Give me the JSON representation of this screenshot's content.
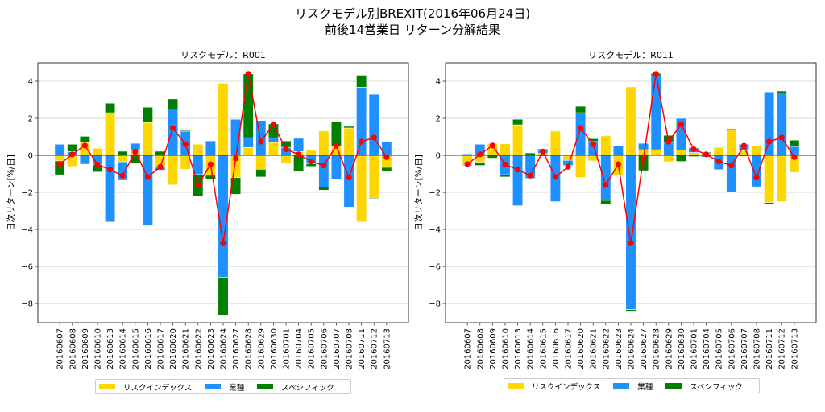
{
  "title": {
    "line1": "リスクモデル別BREXIT(2016年06月24日)",
    "line2": "前後14営業日 リターン分解結果"
  },
  "colors": {
    "risk_index": "#FFD700",
    "sector": "#1E90FF",
    "specific": "#008000",
    "total": "#FF0000"
  },
  "chart_data": [
    {
      "type": "bar",
      "stacked": true,
      "title": "リスクモデル：R001",
      "xlabel": "",
      "ylabel": "日次リターン[%/日]",
      "ylim": [
        -9.04,
        5.0
      ],
      "yticks": [
        4,
        2,
        0,
        -2,
        -4,
        -6,
        -8
      ],
      "grid": "y",
      "legend_position": "bottom-center",
      "categories": [
        "20160607",
        "20160608",
        "20160609",
        "20160610",
        "20160613",
        "20160614",
        "20160615",
        "20160616",
        "20160617",
        "20160620",
        "20160621",
        "20160622",
        "20160623",
        "20160624",
        "20160627",
        "20160628",
        "20160629",
        "20160630",
        "20160701",
        "20160704",
        "20160705",
        "20160706",
        "20160707",
        "20160708",
        "20160711",
        "20160712",
        "20160713"
      ],
      "series": [
        {
          "name": "リスクインデックス",
          "color_key": "risk_index",
          "values": [
            -0.3,
            -0.6,
            0.7,
            0.38,
            2.3,
            -0.35,
            0.25,
            1.78,
            -0.65,
            -1.6,
            -0.75,
            0.6,
            -1.08,
            3.9,
            -1.2,
            0.42,
            -0.75,
            0.7,
            -0.45,
            0.2,
            0.27,
            1.32,
            0.48,
            1.48,
            -3.6,
            -2.28,
            -0.65
          ]
        },
        {
          "name": "業種",
          "color_key": "sector",
          "values": [
            0.6,
            0.2,
            -0.48,
            -0.5,
            -3.6,
            -1.0,
            0.4,
            -3.8,
            -0.15,
            2.5,
            1.3,
            -1.04,
            0.78,
            -6.58,
            1.95,
            0.53,
            1.88,
            0.25,
            0.43,
            0.72,
            -0.45,
            -1.72,
            -1.3,
            -2.8,
            3.68,
            3.3,
            0.75
          ]
        },
        {
          "name": "スペシフィック",
          "color_key": "specific",
          "values": [
            -0.75,
            0.4,
            0.33,
            -0.4,
            0.52,
            0.22,
            -0.45,
            0.82,
            0.22,
            0.55,
            0.05,
            -1.16,
            -0.22,
            -2.07,
            -0.9,
            3.45,
            -0.42,
            0.75,
            0.35,
            -0.87,
            -0.15,
            -0.16,
            1.35,
            0.09,
            0.65,
            -0.05,
            -0.22
          ]
        },
        {
          "name": "合計",
          "type": "line",
          "color_key": "total",
          "values": [
            -0.47,
            0.05,
            0.53,
            -0.5,
            -0.77,
            -1.1,
            0.2,
            -1.17,
            -0.62,
            1.47,
            0.6,
            -1.6,
            -0.48,
            -4.75,
            -0.17,
            4.4,
            0.74,
            1.68,
            0.33,
            0.05,
            -0.33,
            -0.55,
            0.52,
            -1.2,
            0.74,
            0.96,
            -0.1
          ]
        }
      ]
    },
    {
      "type": "bar",
      "stacked": true,
      "title": "リスクモデル：R011",
      "xlabel": "",
      "ylabel": "日次リターン[%/日]",
      "ylim": [
        -9.04,
        5.0
      ],
      "yticks": [
        4,
        2,
        0,
        -2,
        -4,
        -6,
        -8
      ],
      "grid": "y",
      "legend_position": "bottom-center",
      "categories": [
        "20160607",
        "20160608",
        "20160609",
        "20160610",
        "20160613",
        "20160614",
        "20160615",
        "20160616",
        "20160617",
        "20160620",
        "20160621",
        "20160622",
        "20160623",
        "20160624",
        "20160627",
        "20160628",
        "20160629",
        "20160630",
        "20160701",
        "20160704",
        "20160705",
        "20160706",
        "20160707",
        "20160708",
        "20160711",
        "20160712",
        "20160713"
      ],
      "series": [
        {
          "name": "リスクインデックス",
          "color_key": "risk_index",
          "values": [
            -0.5,
            -0.37,
            0.65,
            0.62,
            1.65,
            0.0,
            0.1,
            1.3,
            -0.27,
            -1.2,
            -0.3,
            1.05,
            -1.05,
            3.7,
            0.3,
            0.3,
            -0.35,
            0.28,
            0.15,
            0.1,
            0.43,
            1.4,
            0.25,
            0.5,
            -2.55,
            -2.5,
            -0.92
          ]
        },
        {
          "name": "業種",
          "color_key": "sector",
          "values": [
            0.08,
            0.6,
            0.0,
            -1.05,
            -2.72,
            -1.25,
            0.25,
            -2.5,
            -0.28,
            2.3,
            0.75,
            -2.43,
            0.5,
            -8.33,
            0.35,
            4.0,
            0.7,
            1.72,
            0.25,
            -0.1,
            -0.78,
            -2.0,
            0.35,
            -1.7,
            3.43,
            3.38,
            0.48
          ]
        },
        {
          "name": "スペシフィック",
          "color_key": "specific",
          "values": [
            -0.05,
            -0.18,
            -0.15,
            -0.12,
            0.3,
            0.13,
            -0.05,
            0.03,
            0.05,
            0.35,
            0.15,
            -0.22,
            0.0,
            -0.12,
            -0.83,
            0.12,
            0.38,
            -0.33,
            -0.07,
            0.07,
            -0.02,
            0.05,
            -0.05,
            0.0,
            -0.1,
            0.1,
            0.34
          ]
        },
        {
          "name": "合計",
          "type": "line",
          "color_key": "total",
          "values": [
            -0.47,
            0.05,
            0.53,
            -0.5,
            -0.77,
            -1.1,
            0.2,
            -1.17,
            -0.62,
            1.47,
            0.6,
            -1.6,
            -0.48,
            -4.75,
            -0.17,
            4.4,
            0.74,
            1.68,
            0.33,
            0.05,
            -0.33,
            -0.55,
            0.52,
            -1.2,
            0.74,
            0.96,
            -0.1
          ]
        }
      ]
    }
  ],
  "legend": {
    "items": [
      {
        "label": "リスクインデックス",
        "color_key": "risk_index"
      },
      {
        "label": "業種",
        "color_key": "sector"
      },
      {
        "label": "スペシフィック",
        "color_key": "specific"
      }
    ]
  }
}
